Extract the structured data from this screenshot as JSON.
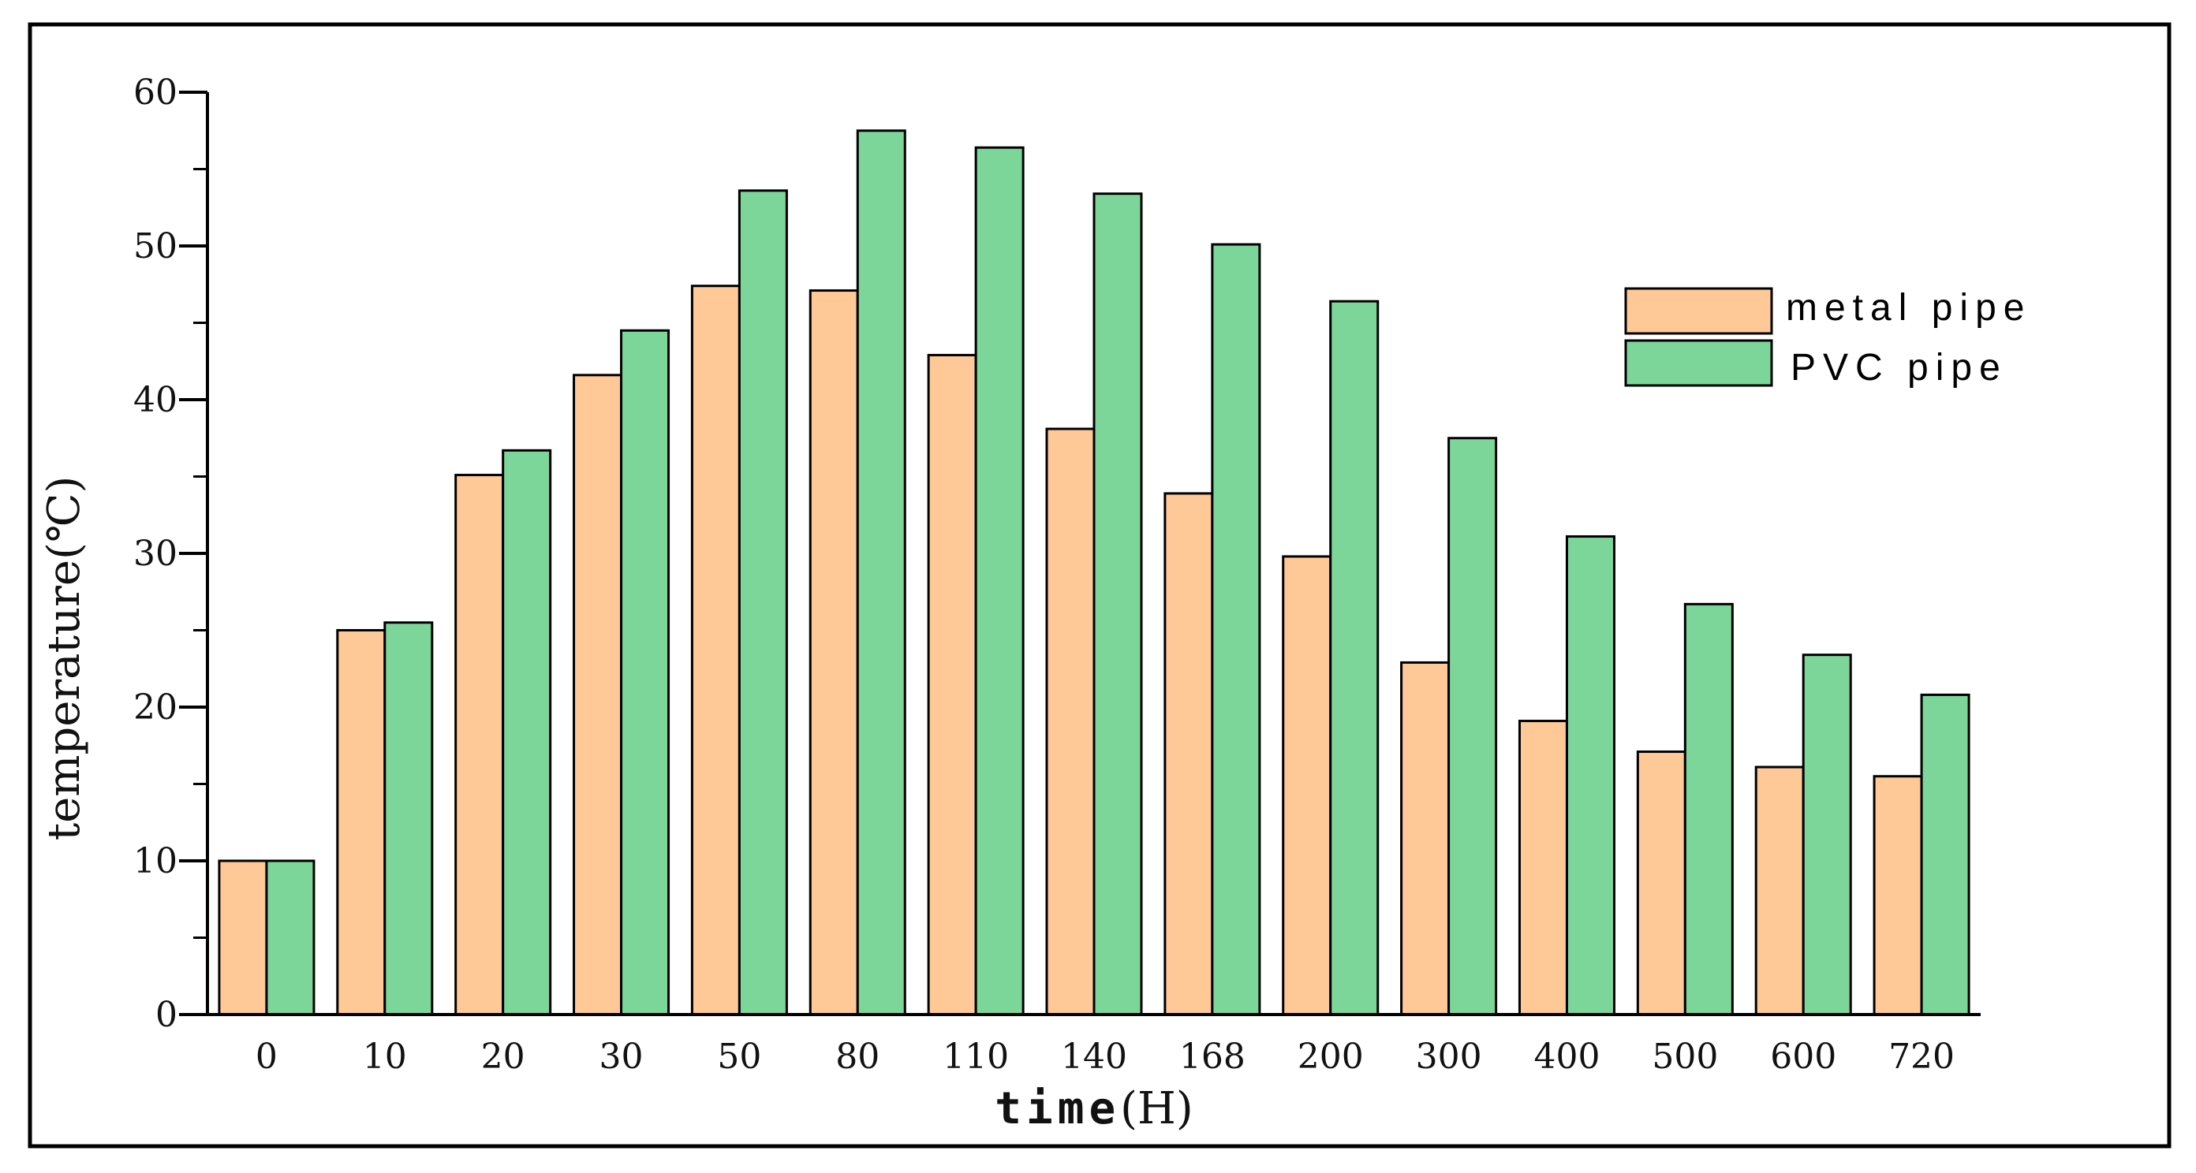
{
  "chart_data": {
    "type": "bar",
    "title": "",
    "xlabel_bold": "time",
    "xlabel_unit": "(H)",
    "ylabel": "temperature(℃)",
    "ylim": [
      0,
      60
    ],
    "yticks": [
      0,
      10,
      20,
      30,
      40,
      50,
      60
    ],
    "grid": false,
    "legend_position": "top-right",
    "categories": [
      "0",
      "10",
      "20",
      "30",
      "50",
      "80",
      "110",
      "140",
      "168",
      "200",
      "300",
      "400",
      "500",
      "600",
      "720"
    ],
    "series": [
      {
        "name": "metal pipe",
        "color": "#FFC896",
        "values": [
          10,
          25.0,
          35.1,
          41.6,
          47.4,
          47.1,
          42.9,
          38.1,
          33.9,
          29.8,
          22.9,
          19.1,
          17.1,
          16.1,
          15.5
        ]
      },
      {
        "name": "PVC pipe",
        "color": "#7DD699",
        "values": [
          10,
          25.5,
          36.7,
          44.5,
          53.6,
          57.5,
          56.4,
          53.4,
          50.1,
          46.4,
          37.5,
          31.1,
          26.7,
          23.4,
          20.8
        ]
      }
    ]
  }
}
